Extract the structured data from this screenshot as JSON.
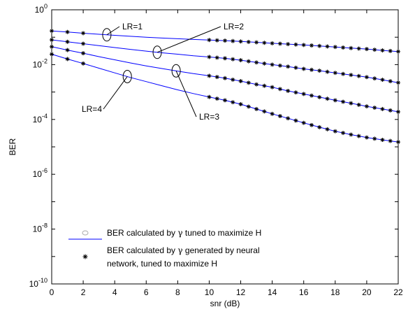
{
  "chart_data": {
    "type": "line",
    "xlabel": "snr (dB)",
    "ylabel": "BER",
    "xlim": [
      0,
      22
    ],
    "ylim_log10": [
      -10,
      0
    ],
    "yscale": "log",
    "grid": false,
    "xticks": [
      0,
      2,
      4,
      6,
      8,
      10,
      12,
      14,
      16,
      18,
      20,
      22
    ],
    "xtick_labels": [
      "0",
      "2",
      "4",
      "6",
      "8",
      "10",
      "12",
      "14",
      "16",
      "18",
      "20",
      "22"
    ],
    "yticks_log10": [
      0,
      -2,
      -4,
      -6,
      -8,
      -10
    ],
    "ytick_labels": [
      {
        "base": "10",
        "exp": "0"
      },
      {
        "base": "10",
        "exp": "-2"
      },
      {
        "base": "10",
        "exp": "-4"
      },
      {
        "base": "10",
        "exp": "-6"
      },
      {
        "base": "10",
        "exp": "-8"
      },
      {
        "base": "10",
        "exp": "-10"
      }
    ],
    "line_color": "#0000ff",
    "marker_color": "#000000",
    "x": [
      0,
      1,
      2,
      3,
      4,
      5,
      6,
      7,
      8,
      9,
      10,
      11,
      12,
      13,
      14,
      15,
      16,
      17,
      18,
      19,
      20,
      21,
      22
    ],
    "marker_x": [
      0,
      1,
      2,
      10,
      10.5,
      11,
      11.5,
      12,
      12.5,
      13,
      13.5,
      14,
      14.5,
      15,
      15.5,
      16,
      16.5,
      17,
      17.5,
      18,
      18.5,
      19,
      19.5,
      20,
      20.5,
      21,
      21.5,
      22
    ],
    "series": [
      {
        "label": "LR=1",
        "values": [
          0.17,
          0.155,
          0.14,
          0.128,
          0.117,
          0.108,
          0.1,
          0.093,
          0.088,
          0.083,
          0.079,
          0.075,
          0.07,
          0.065,
          0.06,
          0.056,
          0.052,
          0.048,
          0.044,
          0.04,
          0.037,
          0.033,
          0.03
        ]
      },
      {
        "label": "LR=2",
        "values": [
          0.08,
          0.068,
          0.058,
          0.049,
          0.042,
          0.036,
          0.031,
          0.027,
          0.024,
          0.021,
          0.019,
          0.017,
          0.0145,
          0.012,
          0.01,
          0.0085,
          0.007,
          0.006,
          0.005,
          0.0042,
          0.0035,
          0.0028,
          0.0022
        ]
      },
      {
        "label": "LR=3",
        "values": [
          0.045,
          0.034,
          0.026,
          0.0195,
          0.015,
          0.0115,
          0.009,
          0.0072,
          0.0058,
          0.0047,
          0.0039,
          0.0032,
          0.0025,
          0.0019,
          0.0015,
          0.0011,
          0.00085,
          0.00065,
          0.0005,
          0.00039,
          0.0003,
          0.00024,
          0.00019
        ]
      },
      {
        "label": "LR=4",
        "values": [
          0.024,
          0.016,
          0.011,
          0.0074,
          0.005,
          0.0034,
          0.0024,
          0.0017,
          0.0012,
          0.00088,
          0.00066,
          0.0005,
          0.00036,
          0.00024,
          0.00016,
          0.00011,
          7.5e-05,
          5.2e-05,
          3.7e-05,
          2.8e-05,
          2.2e-05,
          1.8e-05,
          1.5e-05
        ]
      }
    ],
    "annotations": [
      {
        "text": "LR=1",
        "series": 0,
        "x": 3.5
      },
      {
        "text": "LR=2",
        "series": 1,
        "x": 6.7
      },
      {
        "text": "LR=3",
        "series": 2,
        "x": 7.9
      },
      {
        "text": "LR=4",
        "series": 3,
        "x": 4.8
      }
    ],
    "legend": {
      "placement": "bottom-left",
      "entries": [
        {
          "pre": "BER calculated by ",
          "sym": "γ",
          "post": " tuned to maximize H"
        },
        {
          "pre": "BER calculated by ",
          "sym": "γ",
          "post": " generated by neural",
          "line2": "network, tuned to maximize H"
        }
      ]
    }
  }
}
